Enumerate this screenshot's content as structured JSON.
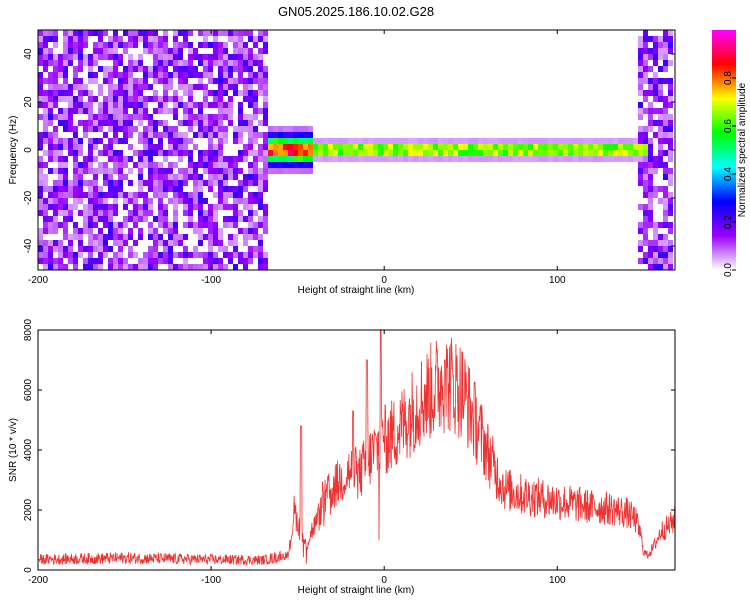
{
  "page": {
    "title": "GN05.2025.186.10.02.G28"
  },
  "chart_data": [
    {
      "type": "heatmap",
      "xlabel": "Height of straight line (km)",
      "ylabel": "Frequency (Hz)",
      "xlim": [
        -200,
        168
      ],
      "ylim": [
        -50,
        50
      ],
      "x_ticks": [
        "-200",
        "-100",
        "0",
        "100"
      ],
      "y_ticks": [
        "40",
        "20",
        "0",
        "-20",
        "-40"
      ],
      "colorbar": {
        "label": "Normalized spectral amplitude",
        "range": [
          0,
          1
        ],
        "ticks": [
          "0.0",
          "0.2",
          "0.4",
          "0.6",
          "0.8"
        ],
        "colors": [
          "#ffffff",
          "#9900ff",
          "#0000ff",
          "#00ffff",
          "#00ff00",
          "#ffff00",
          "#ff0000",
          "#ff00ff"
        ]
      },
      "noise_regions_km": [
        [
          -200,
          -67
        ],
        [
          148,
          168
        ]
      ],
      "signal_band": {
        "x_start_km": -67,
        "x_end_km": 152,
        "freq_hz": 0,
        "amplitude": 0.92
      },
      "grid": false,
      "legend": "none"
    },
    {
      "type": "line",
      "xlabel": "Height of straight line (km)",
      "ylabel": "SNR (10 * v/v)",
      "xlim": [
        -200,
        168
      ],
      "ylim": [
        0,
        8000
      ],
      "x_ticks": [
        "-200",
        "-100",
        "0",
        "100"
      ],
      "y_ticks": [
        "8000",
        "6000",
        "4000",
        "2000",
        "0"
      ],
      "color": "#ee3333",
      "envelope": {
        "x": [
          -200,
          -150,
          -100,
          -70,
          -55,
          -52,
          -48,
          -45,
          -42,
          -38,
          -35,
          -30,
          -25,
          -20,
          -15,
          -10,
          -5,
          0,
          5,
          10,
          20,
          30,
          35,
          40,
          45,
          50,
          55,
          60,
          65,
          70,
          80,
          90,
          100,
          110,
          120,
          130,
          140,
          145,
          148,
          150,
          152,
          155,
          160,
          165,
          168
        ],
        "y": [
          350,
          400,
          350,
          330,
          500,
          2000,
          1200,
          800,
          1300,
          1700,
          2300,
          2700,
          3000,
          3300,
          3100,
          3600,
          4000,
          4300,
          4500,
          4800,
          5600,
          6100,
          6300,
          6200,
          6000,
          5300,
          4600,
          3900,
          3200,
          2700,
          2500,
          2400,
          2300,
          2200,
          2100,
          2050,
          1900,
          1700,
          1200,
          600,
          500,
          700,
          1300,
          1500,
          1700
        ]
      },
      "peaks": [
        {
          "x": -2,
          "y": 8000
        },
        {
          "x": -10,
          "y": 7000
        },
        {
          "x": -18,
          "y": 5300
        },
        {
          "x": -48,
          "y": 4800
        },
        {
          "x": 35,
          "y": 7000
        }
      ],
      "grid": false,
      "legend": "none"
    }
  ]
}
